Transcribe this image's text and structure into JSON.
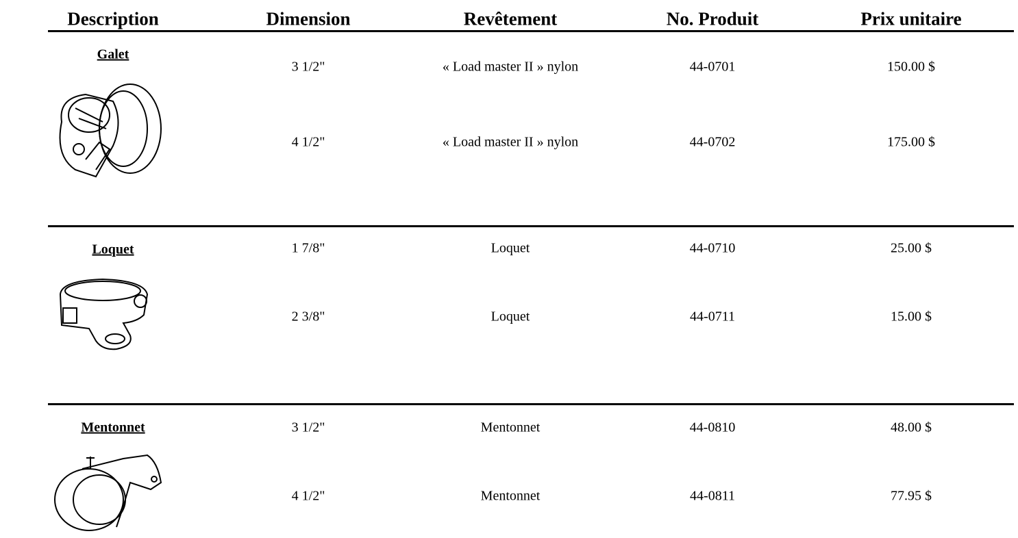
{
  "table": {
    "header": [
      "Description",
      "Dimension",
      "Revêtement",
      "No. Produit",
      "Prix unitaire"
    ],
    "sections": [
      {
        "name": "Galet",
        "rows": [
          [
            "3 1/2\"",
            "« Load master II » nylon",
            "44-0701",
            "150.00 $"
          ],
          [
            "4 1/2\"",
            "« Load master II » nylon",
            "44-0702",
            "175.00 $"
          ]
        ]
      },
      {
        "name": "Loquet",
        "rows": [
          [
            "1 7/8\"",
            "Loquet",
            "44-0710",
            "25.00 $"
          ],
          [
            "2 3/8\"",
            "Loquet",
            "44-0711",
            "15.00 $"
          ]
        ]
      },
      {
        "name": "Mentonnet",
        "rows": [
          [
            "3 1/2\"",
            "Mentonnet",
            "44-0810",
            "48.00 $"
          ],
          [
            "4 1/2\"",
            "Mentonnet",
            "44-0811",
            "77.95 $"
          ]
        ]
      }
    ]
  }
}
